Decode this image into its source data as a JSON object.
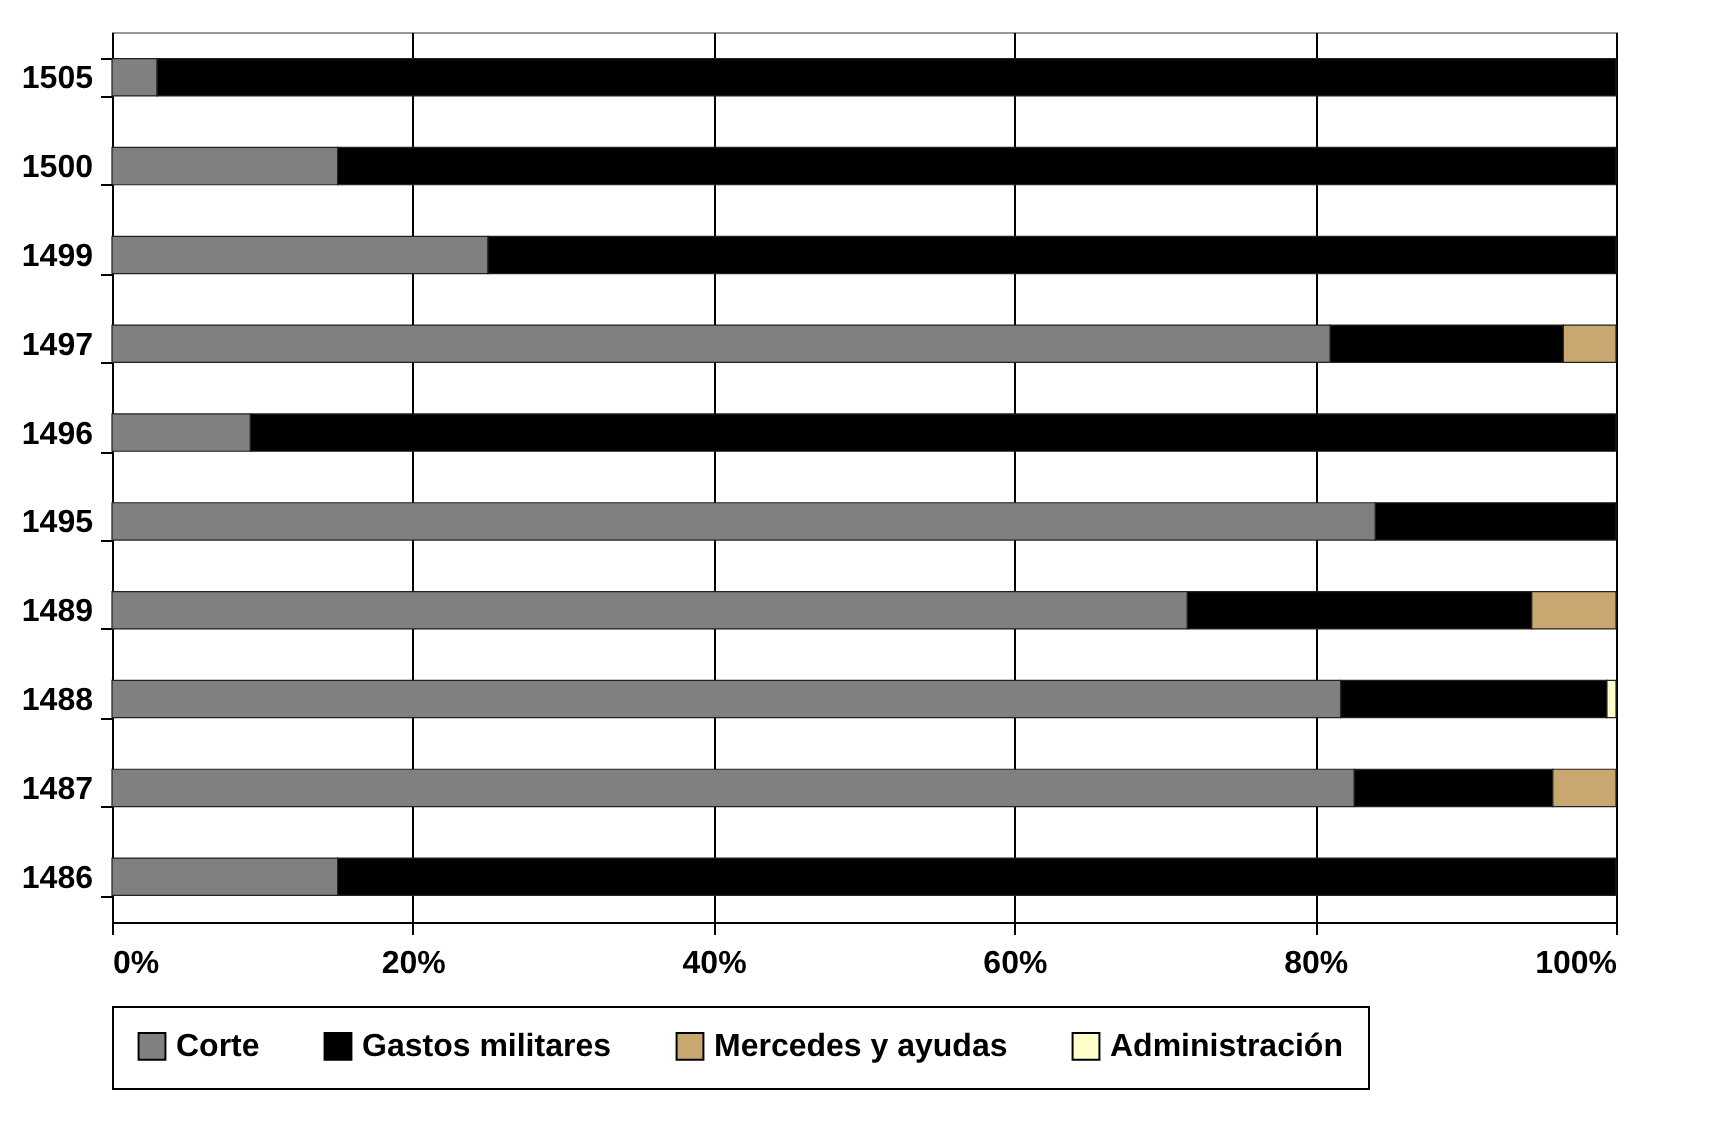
{
  "chart_data": {
    "type": "bar",
    "orientation": "horizontal",
    "stacked": true,
    "categories": [
      "1505",
      "1500",
      "1499",
      "1497",
      "1496",
      "1495",
      "1489",
      "1488",
      "1487",
      "1486"
    ],
    "series": [
      {
        "name": "Corte",
        "color": "#808080",
        "values": [
          3,
          15,
          25,
          81,
          9.2,
          84,
          71.5,
          81.7,
          82.6,
          15
        ]
      },
      {
        "name": "Gastos militares",
        "color": "#000000",
        "values": [
          97,
          85,
          75,
          15.5,
          90.8,
          16,
          22.9,
          17.7,
          13.2,
          85
        ]
      },
      {
        "name": "Mercedes y ayudas",
        "color": "#c8a870",
        "values": [
          null,
          null,
          null,
          3.5,
          null,
          null,
          5.6,
          null,
          4.2,
          null
        ]
      },
      {
        "name": "Administración",
        "color": "#ffffcc",
        "values": [
          null,
          null,
          null,
          null,
          null,
          null,
          null,
          0.6,
          null,
          null
        ]
      }
    ],
    "xlim": [
      0,
      100
    ],
    "xticks": [
      {
        "value": 0,
        "label": "0%"
      },
      {
        "value": 20,
        "label": "20%"
      },
      {
        "value": 40,
        "label": "40%"
      },
      {
        "value": 60,
        "label": "60%"
      },
      {
        "value": 80,
        "label": "80%"
      },
      {
        "value": 100,
        "label": "100%"
      }
    ],
    "grid": "x",
    "legend": "bottom"
  }
}
